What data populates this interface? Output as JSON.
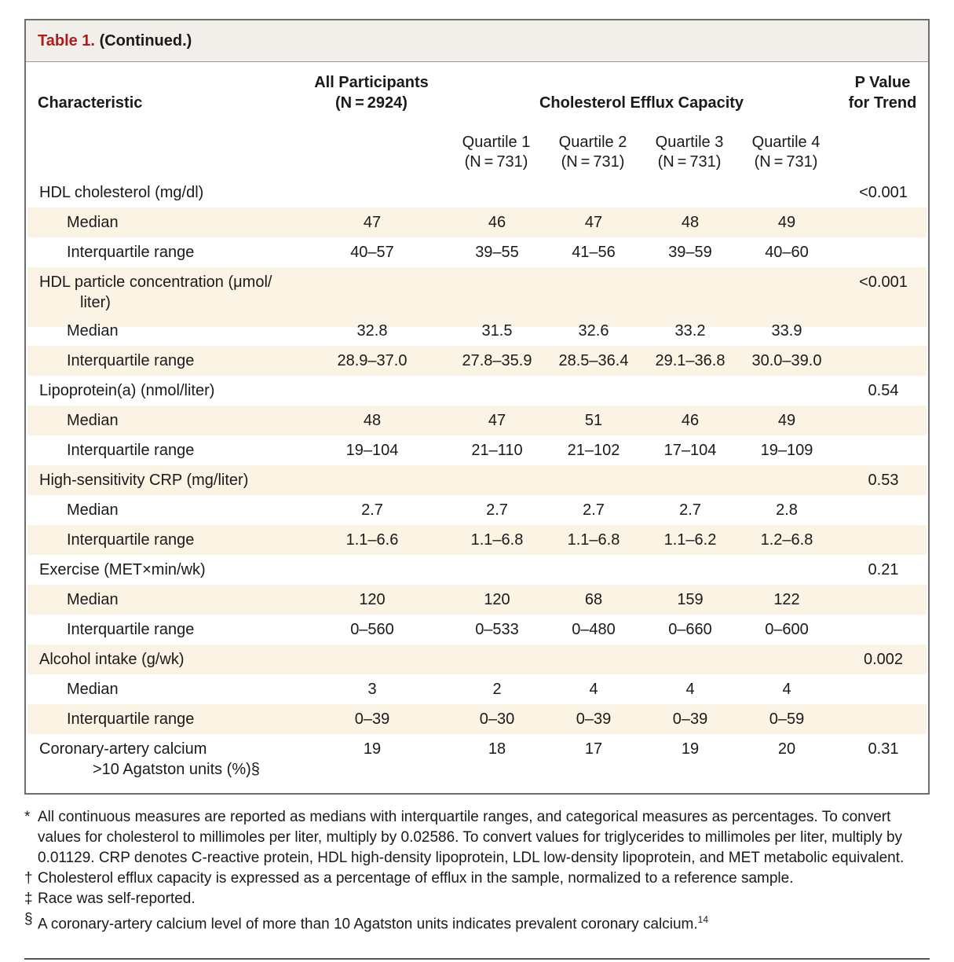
{
  "table": {
    "label": "Table 1.",
    "title": "(Continued.)",
    "headers": {
      "characteristic": "Characteristic",
      "all_line1": "All Participants",
      "all_line2": "(N = 2924)",
      "efflux": "Cholesterol Efflux Capacity",
      "p_line1": "P Value",
      "p_line2": "for Trend",
      "quartiles": [
        {
          "line1": "Quartile 1",
          "line2": "(N = 731)"
        },
        {
          "line1": "Quartile 2",
          "line2": "(N = 731)"
        },
        {
          "line1": "Quartile 3",
          "line2": "(N = 731)"
        },
        {
          "line1": "Quartile 4",
          "line2": "(N = 731)"
        }
      ]
    },
    "rows": [
      {
        "label": "HDL cholesterol (mg/dl)",
        "p": "<0.001"
      },
      {
        "label": "Median",
        "all": "47",
        "q1": "46",
        "q2": "47",
        "q3": "48",
        "q4": "49"
      },
      {
        "label": "Interquartile range",
        "all": "40–57",
        "q1": "39–55",
        "q2": "41–56",
        "q3": "39–59",
        "q4": "40–60"
      },
      {
        "label": "HDL particle concentration (μmol/",
        "label2": "liter)",
        "p": "<0.001"
      },
      {
        "label": "Median",
        "all": "32.8",
        "q1": "31.5",
        "q2": "32.6",
        "q3": "33.2",
        "q4": "33.9"
      },
      {
        "label": "Interquartile range",
        "all": "28.9–37.0",
        "q1": "27.8–35.9",
        "q2": "28.5–36.4",
        "q3": "29.1–36.8",
        "q4": "30.0–39.0"
      },
      {
        "label": "Lipoprotein(a) (nmol/liter)",
        "p": "0.54"
      },
      {
        "label": "Median",
        "all": "48",
        "q1": "47",
        "q2": "51",
        "q3": "46",
        "q4": "49"
      },
      {
        "label": "Interquartile range",
        "all": "19–104",
        "q1": "21–110",
        "q2": "21–102",
        "q3": "17–104",
        "q4": "19–109"
      },
      {
        "label": "High-sensitivity CRP (mg/liter)",
        "p": "0.53"
      },
      {
        "label": "Median",
        "all": "2.7",
        "q1": "2.7",
        "q2": "2.7",
        "q3": "2.7",
        "q4": "2.8"
      },
      {
        "label": "Interquartile range",
        "all": "1.1–6.6",
        "q1": "1.1–6.8",
        "q2": "1.1–6.8",
        "q3": "1.1–6.2",
        "q4": "1.2–6.8"
      },
      {
        "label": "Exercise (MET×min/wk)",
        "p": "0.21"
      },
      {
        "label": "Median",
        "all": "120",
        "q1": "120",
        "q2": "68",
        "q3": "159",
        "q4": "122"
      },
      {
        "label": "Interquartile range",
        "all": "0–560",
        "q1": "0–533",
        "q2": "0–480",
        "q3": "0–660",
        "q4": "0–600"
      },
      {
        "label": "Alcohol intake (g/wk)",
        "p": "0.002"
      },
      {
        "label": "Median",
        "all": "3",
        "q1": "2",
        "q2": "4",
        "q3": "4",
        "q4": "4"
      },
      {
        "label": "Interquartile range",
        "all": "0–39",
        "q1": "0–30",
        "q2": "0–39",
        "q3": "0–39",
        "q4": "0–59"
      },
      {
        "label": "Coronary-artery calcium",
        "label2": ">10 Agatston units (%)§",
        "all": "19",
        "q1": "18",
        "q2": "17",
        "q3": "19",
        "q4": "20",
        "p": "0.31"
      }
    ]
  },
  "footnotes": [
    {
      "symbol": "*",
      "text": "All continuous measures are reported as medians with interquartile ranges, and categorical measures as percentages. To convert values for cholesterol to millimoles per liter, multiply by 0.02586. To convert values for triglycerides to millimoles per liter, multiply by 0.01129. CRP denotes C-reactive protein, HDL high-density lipoprotein, LDL low-density lipoprotein, and MET metabolic equivalent."
    },
    {
      "symbol": "†",
      "text": "Cholesterol efflux capacity is expressed as a percentage of efflux in the sample, normalized to a reference sample."
    },
    {
      "symbol": "‡",
      "text": "Race was self-reported."
    },
    {
      "symbol": "§",
      "text": "A coronary-artery calcium level of more than 10 Agatston units indicates prevalent coronary calcium.",
      "ref": "14"
    }
  ]
}
